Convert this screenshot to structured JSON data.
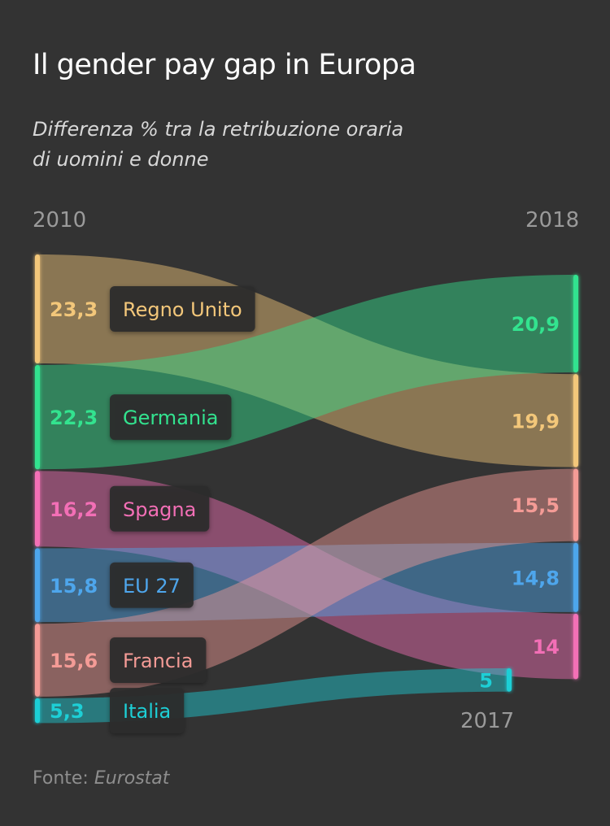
{
  "title": "Il gender pay gap in Europa",
  "subtitle_line1": "Differenza % tra la retribuzione oraria",
  "subtitle_line2": "di uomini e donne",
  "year_start": "2010",
  "year_end": "2018",
  "year_italy_end": "2017",
  "source_label": "Fonte:",
  "source_name": "Eurostat",
  "chart_data": {
    "type": "slope",
    "unit": "%",
    "x": [
      "2010",
      "2018"
    ],
    "series": [
      {
        "name": "Regno Unito",
        "start": 23.3,
        "end": 19.9,
        "start_label": "23,3",
        "end_label": "19,9",
        "color": "#F3C77A"
      },
      {
        "name": "Germania",
        "start": 22.3,
        "end": 20.9,
        "start_label": "22,3",
        "end_label": "20,9",
        "color": "#33E38F"
      },
      {
        "name": "Spagna",
        "start": 16.2,
        "end": 14.0,
        "start_label": "16,2",
        "end_label": "14",
        "color": "#F36FB6"
      },
      {
        "name": "EU 27",
        "start": 15.8,
        "end": 14.8,
        "start_label": "15,8",
        "end_label": "14,8",
        "color": "#4EA6EC"
      },
      {
        "name": "Francia",
        "start": 15.6,
        "end": 15.5,
        "start_label": "15,6",
        "end_label": "15,5",
        "color": "#F49B96"
      },
      {
        "name": "Italia",
        "start": 5.3,
        "end": 5.0,
        "start_label": "5,3",
        "end_label": "5",
        "end_year": "2017",
        "color": "#1DCFD6"
      }
    ]
  }
}
